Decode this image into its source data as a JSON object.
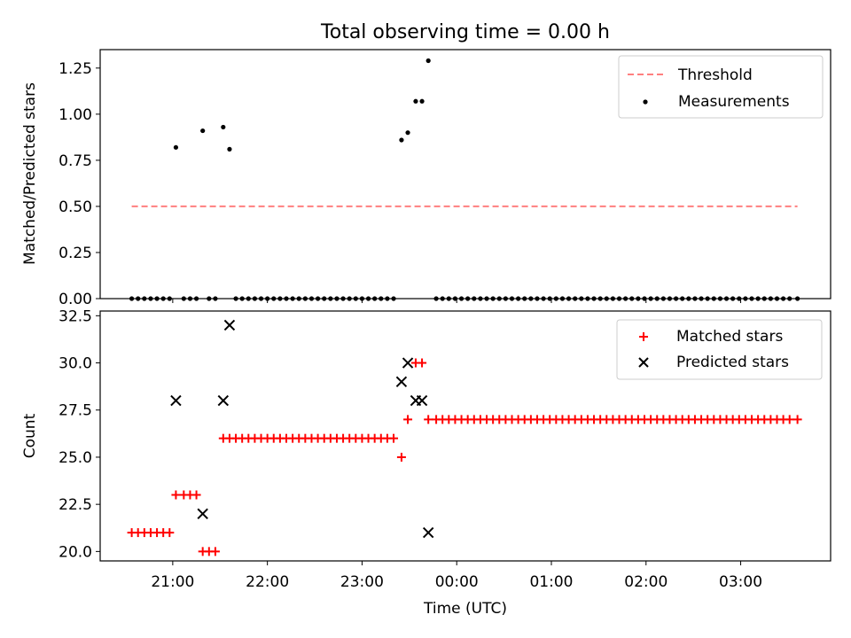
{
  "chart_data": [
    {
      "type": "scatter",
      "title": "Total observing time = 0.00 h",
      "ylabel": "Matched/Predicted stars",
      "xlabel": "",
      "x_unit": "minutes",
      "xlim": [
        1274,
        1737
      ],
      "ylim": [
        0,
        1.35
      ],
      "yticks": [
        0.0,
        0.25,
        0.5,
        0.75,
        1.0,
        1.25
      ],
      "ytick_labels": [
        "0.00",
        "0.25",
        "0.50",
        "0.75",
        "1.00",
        "1.25"
      ],
      "grid": false,
      "legend_position": "top-right",
      "threshold": {
        "name": "Threshold",
        "color": "#ff7f7f",
        "style": "dashed",
        "x_range": [
          1294,
          1716
        ],
        "y": 0.5
      },
      "series": [
        {
          "name": "Measurements",
          "marker": "dot",
          "color": "#000000",
          "points": [
            [
              1294,
              0
            ],
            [
              1298,
              0
            ],
            [
              1302,
              0
            ],
            [
              1306,
              0
            ],
            [
              1310,
              0
            ],
            [
              1314,
              0
            ],
            [
              1318,
              0
            ],
            [
              1322,
              0.82
            ],
            [
              1327,
              0
            ],
            [
              1331,
              0
            ],
            [
              1335,
              0
            ],
            [
              1339,
              0.91
            ],
            [
              1343,
              0
            ],
            [
              1347,
              0
            ],
            [
              1352,
              0.93
            ],
            [
              1356,
              0.81
            ],
            [
              1360,
              0
            ],
            [
              1364,
              0
            ],
            [
              1368,
              0
            ],
            [
              1372,
              0
            ],
            [
              1376,
              0
            ],
            [
              1380,
              0
            ],
            [
              1384,
              0
            ],
            [
              1388,
              0
            ],
            [
              1392,
              0
            ],
            [
              1396,
              0
            ],
            [
              1400,
              0
            ],
            [
              1404,
              0
            ],
            [
              1408,
              0
            ],
            [
              1412,
              0
            ],
            [
              1416,
              0
            ],
            [
              1420,
              0
            ],
            [
              1424,
              0
            ],
            [
              1428,
              0
            ],
            [
              1432,
              0
            ],
            [
              1436,
              0
            ],
            [
              1440,
              0
            ],
            [
              1444,
              0
            ],
            [
              1448,
              0
            ],
            [
              1452,
              0
            ],
            [
              1456,
              0
            ],
            [
              1460,
              0
            ],
            [
              1465,
              0.86
            ],
            [
              1469,
              0.9
            ],
            [
              1474,
              1.07
            ],
            [
              1478,
              1.07
            ],
            [
              1482,
              1.29
            ],
            [
              1487,
              0
            ],
            [
              1491,
              0
            ],
            [
              1495,
              0
            ],
            [
              1499,
              0
            ],
            [
              1503,
              0
            ],
            [
              1507,
              0
            ],
            [
              1511,
              0
            ],
            [
              1515,
              0
            ],
            [
              1519,
              0
            ],
            [
              1523,
              0
            ],
            [
              1527,
              0
            ],
            [
              1531,
              0
            ],
            [
              1535,
              0
            ],
            [
              1539,
              0
            ],
            [
              1543,
              0
            ],
            [
              1547,
              0
            ],
            [
              1551,
              0
            ],
            [
              1555,
              0
            ],
            [
              1559,
              0
            ],
            [
              1563,
              0
            ],
            [
              1567,
              0
            ],
            [
              1571,
              0
            ],
            [
              1575,
              0
            ],
            [
              1579,
              0
            ],
            [
              1583,
              0
            ],
            [
              1587,
              0
            ],
            [
              1591,
              0
            ],
            [
              1595,
              0
            ],
            [
              1599,
              0
            ],
            [
              1603,
              0
            ],
            [
              1607,
              0
            ],
            [
              1611,
              0
            ],
            [
              1615,
              0
            ],
            [
              1619,
              0
            ],
            [
              1623,
              0
            ],
            [
              1627,
              0
            ],
            [
              1631,
              0
            ],
            [
              1635,
              0
            ],
            [
              1639,
              0
            ],
            [
              1643,
              0
            ],
            [
              1647,
              0
            ],
            [
              1651,
              0
            ],
            [
              1655,
              0
            ],
            [
              1659,
              0
            ],
            [
              1663,
              0
            ],
            [
              1667,
              0
            ],
            [
              1671,
              0
            ],
            [
              1675,
              0
            ],
            [
              1679,
              0
            ],
            [
              1683,
              0
            ],
            [
              1687,
              0
            ],
            [
              1691,
              0
            ],
            [
              1695,
              0
            ],
            [
              1699,
              0
            ],
            [
              1703,
              0
            ],
            [
              1707,
              0
            ],
            [
              1711,
              0
            ],
            [
              1716,
              0
            ]
          ]
        }
      ]
    },
    {
      "type": "scatter",
      "title": "",
      "ylabel": "Count",
      "xlabel": "Time (UTC)",
      "x_unit": "minutes",
      "xlim": [
        1274,
        1737
      ],
      "ylim": [
        19.5,
        32.75
      ],
      "yticks": [
        20.0,
        22.5,
        25.0,
        27.5,
        30.0,
        32.5
      ],
      "ytick_labels": [
        "20.0",
        "22.5",
        "25.0",
        "27.5",
        "30.0",
        "32.5"
      ],
      "xticks": [
        1320,
        1380,
        1440,
        1500,
        1560,
        1620,
        1680
      ],
      "xtick_labels": [
        "21:00",
        "22:00",
        "23:00",
        "00:00",
        "01:00",
        "02:00",
        "03:00"
      ],
      "grid": false,
      "legend_position": "top-right",
      "series": [
        {
          "name": "Matched stars",
          "marker": "plus",
          "color": "#ff0000",
          "points": [
            [
              1294,
              21
            ],
            [
              1298,
              21
            ],
            [
              1302,
              21
            ],
            [
              1306,
              21
            ],
            [
              1310,
              21
            ],
            [
              1314,
              21
            ],
            [
              1318,
              21
            ],
            [
              1322,
              23
            ],
            [
              1327,
              23
            ],
            [
              1331,
              23
            ],
            [
              1335,
              23
            ],
            [
              1339,
              20
            ],
            [
              1343,
              20
            ],
            [
              1347,
              20
            ],
            [
              1352,
              26
            ],
            [
              1356,
              26
            ],
            [
              1360,
              26
            ],
            [
              1364,
              26
            ],
            [
              1368,
              26
            ],
            [
              1372,
              26
            ],
            [
              1376,
              26
            ],
            [
              1380,
              26
            ],
            [
              1384,
              26
            ],
            [
              1388,
              26
            ],
            [
              1392,
              26
            ],
            [
              1396,
              26
            ],
            [
              1400,
              26
            ],
            [
              1404,
              26
            ],
            [
              1408,
              26
            ],
            [
              1412,
              26
            ],
            [
              1416,
              26
            ],
            [
              1420,
              26
            ],
            [
              1424,
              26
            ],
            [
              1428,
              26
            ],
            [
              1432,
              26
            ],
            [
              1436,
              26
            ],
            [
              1440,
              26
            ],
            [
              1444,
              26
            ],
            [
              1448,
              26
            ],
            [
              1452,
              26
            ],
            [
              1456,
              26
            ],
            [
              1460,
              26
            ],
            [
              1465,
              25
            ],
            [
              1469,
              27
            ],
            [
              1474,
              30
            ],
            [
              1478,
              30
            ],
            [
              1482,
              27
            ],
            [
              1487,
              27
            ],
            [
              1491,
              27
            ],
            [
              1495,
              27
            ],
            [
              1499,
              27
            ],
            [
              1503,
              27
            ],
            [
              1507,
              27
            ],
            [
              1511,
              27
            ],
            [
              1515,
              27
            ],
            [
              1519,
              27
            ],
            [
              1523,
              27
            ],
            [
              1527,
              27
            ],
            [
              1531,
              27
            ],
            [
              1535,
              27
            ],
            [
              1539,
              27
            ],
            [
              1543,
              27
            ],
            [
              1547,
              27
            ],
            [
              1551,
              27
            ],
            [
              1555,
              27
            ],
            [
              1559,
              27
            ],
            [
              1563,
              27
            ],
            [
              1567,
              27
            ],
            [
              1571,
              27
            ],
            [
              1575,
              27
            ],
            [
              1579,
              27
            ],
            [
              1583,
              27
            ],
            [
              1587,
              27
            ],
            [
              1591,
              27
            ],
            [
              1595,
              27
            ],
            [
              1599,
              27
            ],
            [
              1603,
              27
            ],
            [
              1607,
              27
            ],
            [
              1611,
              27
            ],
            [
              1615,
              27
            ],
            [
              1619,
              27
            ],
            [
              1623,
              27
            ],
            [
              1627,
              27
            ],
            [
              1631,
              27
            ],
            [
              1635,
              27
            ],
            [
              1639,
              27
            ],
            [
              1643,
              27
            ],
            [
              1647,
              27
            ],
            [
              1651,
              27
            ],
            [
              1655,
              27
            ],
            [
              1659,
              27
            ],
            [
              1663,
              27
            ],
            [
              1667,
              27
            ],
            [
              1671,
              27
            ],
            [
              1675,
              27
            ],
            [
              1679,
              27
            ],
            [
              1683,
              27
            ],
            [
              1687,
              27
            ],
            [
              1691,
              27
            ],
            [
              1695,
              27
            ],
            [
              1699,
              27
            ],
            [
              1703,
              27
            ],
            [
              1707,
              27
            ],
            [
              1711,
              27
            ],
            [
              1716,
              27
            ]
          ]
        },
        {
          "name": "Predicted stars",
          "marker": "x",
          "color": "#000000",
          "points": [
            [
              1322,
              28
            ],
            [
              1339,
              22
            ],
            [
              1352,
              28
            ],
            [
              1356,
              32
            ],
            [
              1465,
              29
            ],
            [
              1469,
              30
            ],
            [
              1474,
              28
            ],
            [
              1478,
              28
            ],
            [
              1482,
              21
            ]
          ]
        }
      ]
    }
  ]
}
